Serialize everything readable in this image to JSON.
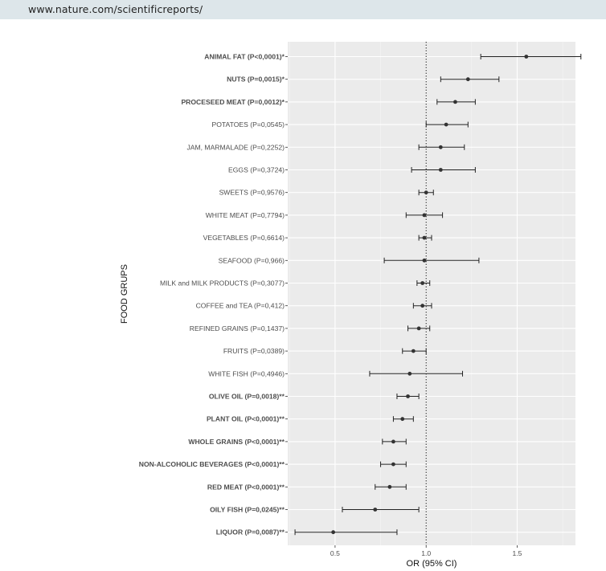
{
  "header": {
    "url": "www.nature.com/scientificreports/"
  },
  "chart_data": {
    "type": "forest",
    "xlabel": "OR (95% CI)",
    "ylabel": "FOOD GRUPS",
    "xlim": [
      0.24,
      1.82
    ],
    "xticks": [
      0.5,
      1.0,
      1.5
    ],
    "xtick_labels": [
      "0.5",
      "1.0",
      "1.5"
    ],
    "reference_line": 1.0,
    "grid": true,
    "rows": [
      {
        "label": "ANIMAL FAT (P<0,0001)*",
        "bold": true,
        "or": 1.55,
        "lo": 1.3,
        "hi": 1.85
      },
      {
        "label": "NUTS (P=0,0015)*",
        "bold": true,
        "or": 1.23,
        "lo": 1.08,
        "hi": 1.4
      },
      {
        "label": "PROCESEED MEAT (P=0,0012)*",
        "bold": true,
        "or": 1.16,
        "lo": 1.06,
        "hi": 1.27
      },
      {
        "label": "POTATOES (P=0,0545)",
        "bold": false,
        "or": 1.11,
        "lo": 1.0,
        "hi": 1.23
      },
      {
        "label": "JAM, MARMALADE (P=0,2252)",
        "bold": false,
        "or": 1.08,
        "lo": 0.96,
        "hi": 1.21
      },
      {
        "label": "EGGS (P=0,3724)",
        "bold": false,
        "or": 1.08,
        "lo": 0.92,
        "hi": 1.27
      },
      {
        "label": "SWEETS (P=0,9576)",
        "bold": false,
        "or": 1.0,
        "lo": 0.96,
        "hi": 1.04
      },
      {
        "label": "WHITE MEAT (P=0,7794)",
        "bold": false,
        "or": 0.99,
        "lo": 0.89,
        "hi": 1.09
      },
      {
        "label": "VEGETABLES (P=0,6614)",
        "bold": false,
        "or": 0.99,
        "lo": 0.96,
        "hi": 1.03
      },
      {
        "label": "SEAFOOD (P=0,966)",
        "bold": false,
        "or": 0.99,
        "lo": 0.77,
        "hi": 1.29
      },
      {
        "label": "MILK and MILK PRODUCTS (P=0,3077)",
        "bold": false,
        "or": 0.98,
        "lo": 0.95,
        "hi": 1.02
      },
      {
        "label": "COFFEE and TEA (P=0,412)",
        "bold": false,
        "or": 0.98,
        "lo": 0.93,
        "hi": 1.03
      },
      {
        "label": "REFINED GRAINS (P=0,1437)",
        "bold": false,
        "or": 0.96,
        "lo": 0.9,
        "hi": 1.02
      },
      {
        "label": "FRUITS (P=0,0389)",
        "bold": false,
        "or": 0.93,
        "lo": 0.87,
        "hi": 1.0
      },
      {
        "label": "WHITE FISH (P=0,4946)",
        "bold": false,
        "or": 0.91,
        "lo": 0.69,
        "hi": 1.2
      },
      {
        "label": "OLIVE OIL (P=0,0018)**",
        "bold": true,
        "or": 0.9,
        "lo": 0.84,
        "hi": 0.96
      },
      {
        "label": "PLANT OIL (P<0,0001)**",
        "bold": true,
        "or": 0.87,
        "lo": 0.82,
        "hi": 0.93
      },
      {
        "label": "WHOLE GRAINS (P<0,0001)**",
        "bold": true,
        "or": 0.82,
        "lo": 0.76,
        "hi": 0.89
      },
      {
        "label": "NON-ALCOHOLIC BEVERAGES (P<0,0001)**",
        "bold": true,
        "or": 0.82,
        "lo": 0.75,
        "hi": 0.89
      },
      {
        "label": "RED MEAT (P<0,0001)**",
        "bold": true,
        "or": 0.8,
        "lo": 0.72,
        "hi": 0.89
      },
      {
        "label": "OILY FISH (P=0,0245)**",
        "bold": true,
        "or": 0.72,
        "lo": 0.54,
        "hi": 0.96
      },
      {
        "label": "LIQUOR (P=0,0087)**",
        "bold": true,
        "or": 0.49,
        "lo": 0.28,
        "hi": 0.84
      }
    ]
  }
}
